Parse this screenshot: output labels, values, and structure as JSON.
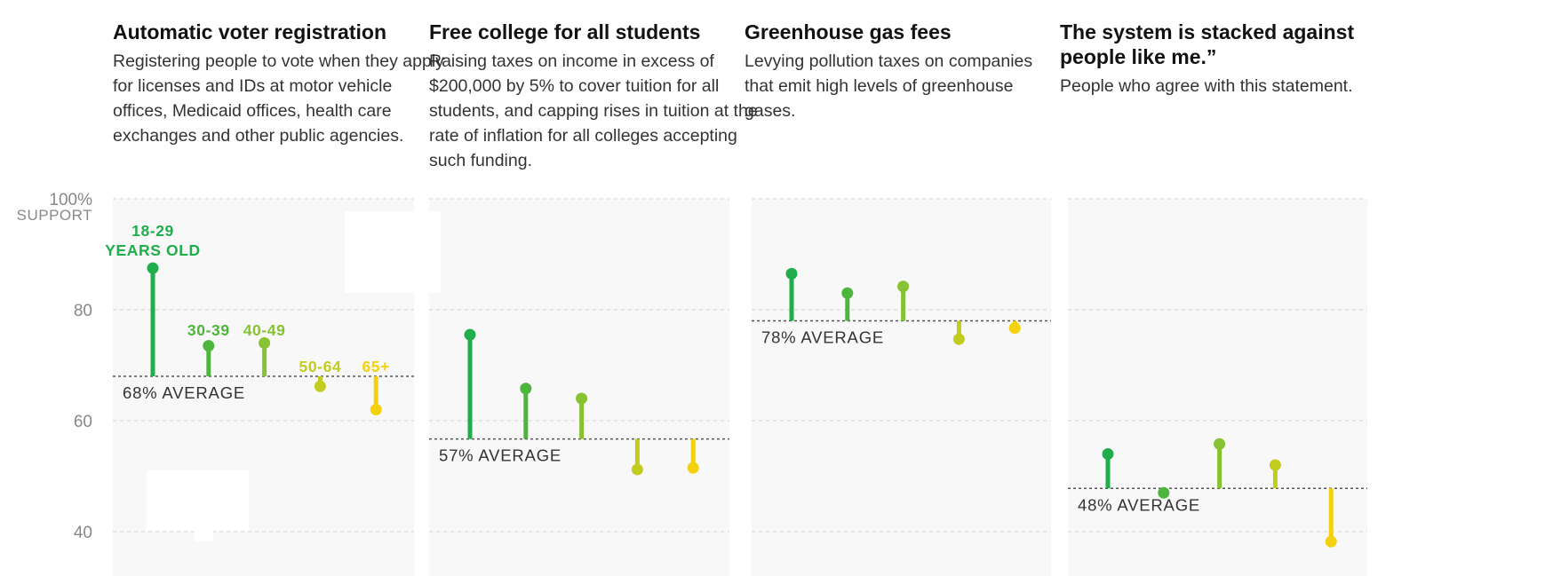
{
  "chart_data": {
    "type": "lollipop",
    "y_axis": {
      "range": [
        30,
        100
      ],
      "ticks": [
        {
          "value": 100,
          "label": "100%"
        },
        {
          "value": 80,
          "label": "80"
        },
        {
          "value": 60,
          "label": "60"
        },
        {
          "value": 40,
          "label": "40"
        }
      ],
      "unit_label": "SUPPORT",
      "gridlines": true
    },
    "groups": [
      {
        "label_line1": "18-29",
        "label_line2": "YEARS OLD",
        "color": "#1fae4b"
      },
      {
        "label_line1": "30-39",
        "label_line2": "",
        "color": "#4eb53c"
      },
      {
        "label_line1": "40-49",
        "label_line2": "",
        "color": "#86c232"
      },
      {
        "label_line1": "50-64",
        "label_line2": "",
        "color": "#c2cc1f"
      },
      {
        "label_line1": "65+",
        "label_line2": "",
        "color": "#f3d10c"
      }
    ],
    "panels": [
      {
        "title": "Automatic voter registration",
        "description": "Registering people to vote when they apply for licenses and IDs at motor vehicle offices, Medicaid offices, health care exchanges and other public agencies.",
        "average": 68,
        "average_label": "68% AVERAGE",
        "values": [
          87.5,
          73.5,
          74,
          66.2,
          62
        ],
        "show_group_labels": true
      },
      {
        "title": "Free college for all students",
        "description": "Raising taxes on income in excess of $200,000 by 5% to cover tuition for all students, and capping rises in tuition at the rate of inflation for all colleges accepting such funding.",
        "average": 56.7,
        "average_label": "57% AVERAGE",
        "values": [
          75.5,
          65.8,
          64,
          51.2,
          51.5
        ],
        "show_group_labels": false
      },
      {
        "title": "Greenhouse gas fees",
        "description": "Levying pollution taxes on companies that emit high levels of greenhouse gases.",
        "average": 78,
        "average_label": "78% AVERAGE",
        "values": [
          86.5,
          83,
          84.2,
          74.7,
          76.7
        ],
        "show_group_labels": false
      },
      {
        "title": "The system is stacked against people like me.”",
        "description": "People who agree with this statement.",
        "average": 47.8,
        "average_label": "48% AVERAGE",
        "values": [
          54,
          47,
          55.8,
          52,
          38.2
        ],
        "show_group_labels": false
      }
    ]
  }
}
